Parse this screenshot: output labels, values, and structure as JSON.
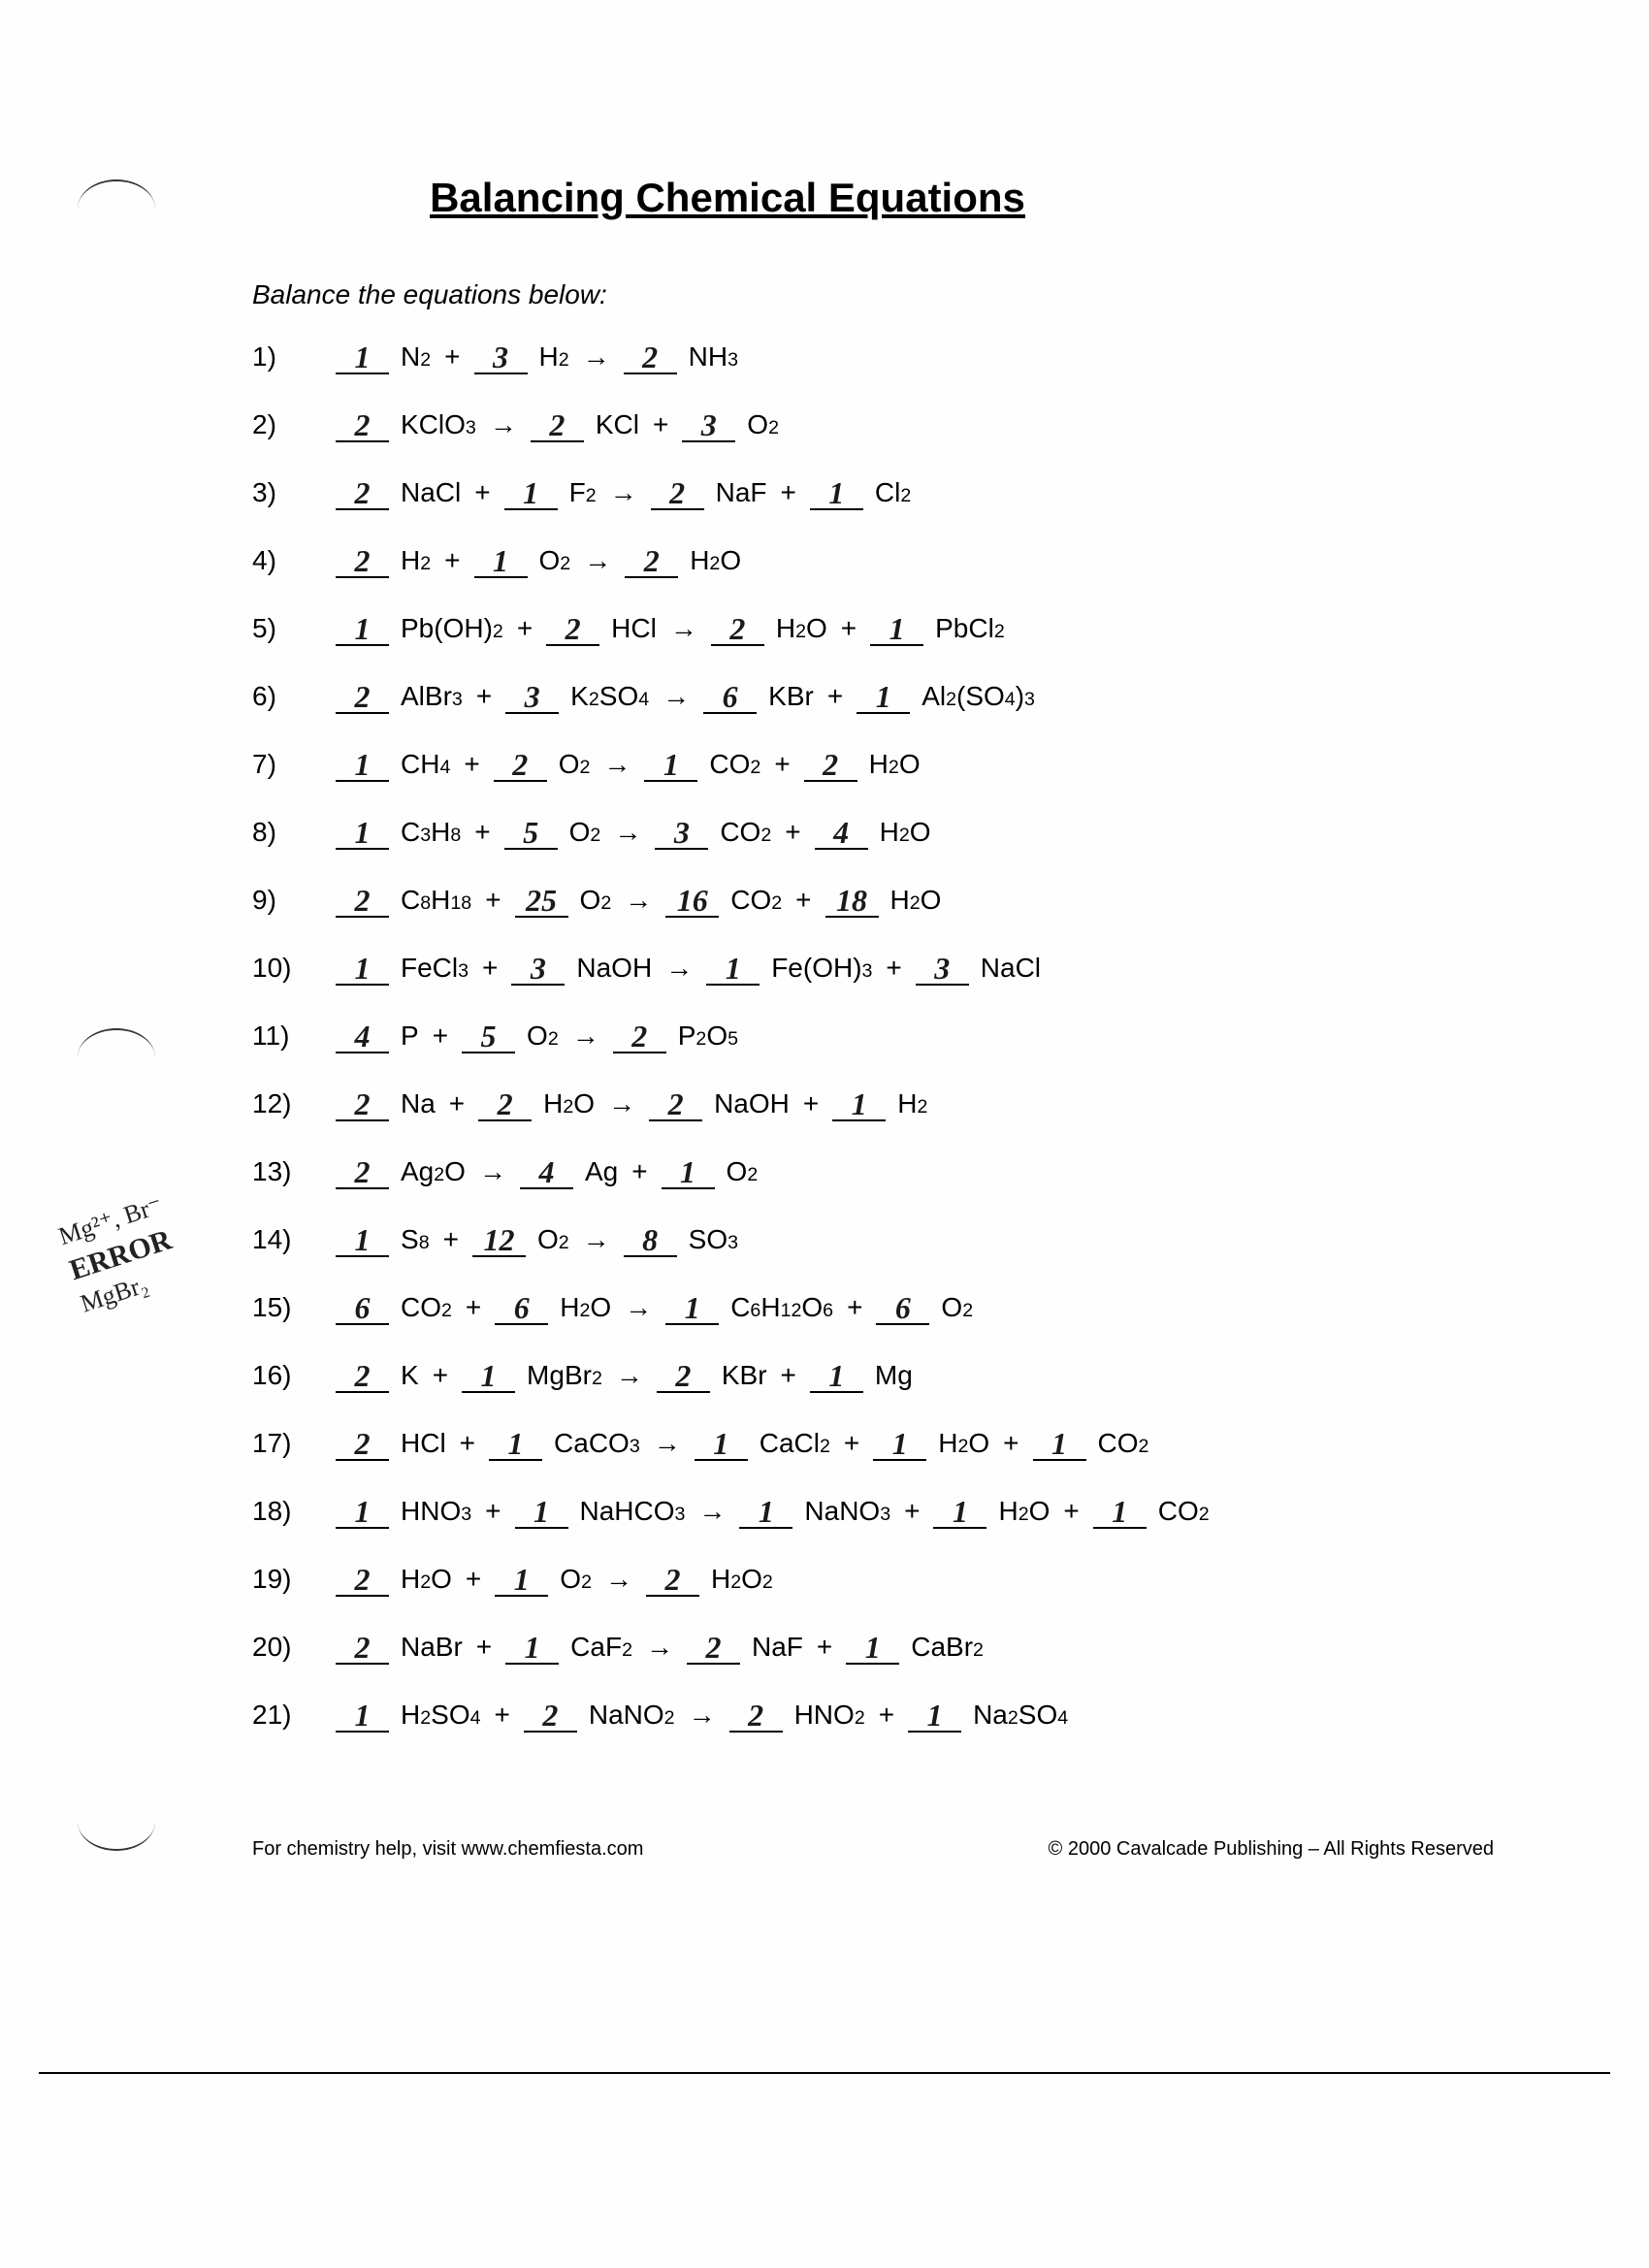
{
  "title": "Balancing Chemical Equations",
  "instruction": "Balance the equations below:",
  "margin_note": {
    "line1": "Mg²⁺, Br⁻",
    "line2": "ERROR",
    "line3": "MgBr₂"
  },
  "footer": {
    "left": "For chemistry help, visit www.chemfiesta.com",
    "right": "© 2000 Cavalcade Publishing – All Rights Reserved"
  },
  "equations": [
    {
      "n": "1)",
      "terms": [
        {
          "c": "1",
          "f": "N₂"
        },
        {
          "op": "+"
        },
        {
          "c": "3",
          "f": "H₂"
        },
        {
          "op": "→"
        },
        {
          "c": "2",
          "f": "NH₃"
        }
      ]
    },
    {
      "n": "2)",
      "terms": [
        {
          "c": "2",
          "f": "KClO₃"
        },
        {
          "op": "→"
        },
        {
          "c": "2",
          "f": "KCl"
        },
        {
          "op": "+"
        },
        {
          "c": "3",
          "f": "O₂"
        }
      ]
    },
    {
      "n": "3)",
      "terms": [
        {
          "c": "2",
          "f": "NaCl"
        },
        {
          "op": "+"
        },
        {
          "c": "1",
          "f": "F₂"
        },
        {
          "op": "→"
        },
        {
          "c": "2",
          "f": "NaF"
        },
        {
          "op": "+"
        },
        {
          "c": "1",
          "f": "Cl₂"
        }
      ]
    },
    {
      "n": "4)",
      "terms": [
        {
          "c": "2",
          "f": "H₂"
        },
        {
          "op": "+"
        },
        {
          "c": "1",
          "f": "O₂"
        },
        {
          "op": "→"
        },
        {
          "c": "2",
          "f": "H₂O"
        }
      ]
    },
    {
      "n": "5)",
      "terms": [
        {
          "c": "1",
          "f": "Pb(OH)₂"
        },
        {
          "op": "+"
        },
        {
          "c": "2",
          "f": "HCl"
        },
        {
          "op": "→"
        },
        {
          "c": "2",
          "f": "H₂O"
        },
        {
          "op": "+"
        },
        {
          "c": "1",
          "f": "PbCl₂"
        }
      ]
    },
    {
      "n": "6)",
      "terms": [
        {
          "c": "2",
          "f": "AlBr₃"
        },
        {
          "op": "+"
        },
        {
          "c": "3",
          "f": "K₂SO₄"
        },
        {
          "op": "→"
        },
        {
          "c": "6",
          "f": "KBr"
        },
        {
          "op": "+"
        },
        {
          "c": "1",
          "f": "Al₂(SO₄)₃"
        }
      ]
    },
    {
      "n": "7)",
      "terms": [
        {
          "c": "1",
          "f": "CH₄"
        },
        {
          "op": "+"
        },
        {
          "c": "2",
          "f": "O₂"
        },
        {
          "op": "→"
        },
        {
          "c": "1",
          "f": "CO₂"
        },
        {
          "op": "+"
        },
        {
          "c": "2",
          "f": "H₂O"
        }
      ]
    },
    {
      "n": "8)",
      "terms": [
        {
          "c": "1",
          "f": "C₃H₈"
        },
        {
          "op": "+"
        },
        {
          "c": "5",
          "f": "O₂"
        },
        {
          "op": "→"
        },
        {
          "c": "3",
          "f": "CO₂"
        },
        {
          "op": "+"
        },
        {
          "c": "4",
          "f": "H₂O"
        }
      ]
    },
    {
      "n": "9)",
      "terms": [
        {
          "c": "2",
          "f": "C₈H₁₈"
        },
        {
          "op": "+"
        },
        {
          "c": "25",
          "f": "O₂"
        },
        {
          "op": "→"
        },
        {
          "c": "16",
          "f": "CO₂"
        },
        {
          "op": "+"
        },
        {
          "c": "18",
          "f": "H₂O"
        }
      ]
    },
    {
      "n": "10)",
      "terms": [
        {
          "c": "1",
          "f": "FeCl₃"
        },
        {
          "op": "+"
        },
        {
          "c": "3",
          "f": "NaOH"
        },
        {
          "op": "→"
        },
        {
          "c": "1",
          "f": "Fe(OH)₃"
        },
        {
          "op": "+"
        },
        {
          "c": "3",
          "f": "NaCl"
        }
      ]
    },
    {
      "n": "11)",
      "terms": [
        {
          "c": "4",
          "f": "P"
        },
        {
          "op": "+"
        },
        {
          "c": "5",
          "f": "O₂"
        },
        {
          "op": "→"
        },
        {
          "c": "2",
          "f": "P₂O₅"
        }
      ]
    },
    {
      "n": "12)",
      "terms": [
        {
          "c": "2",
          "f": "Na"
        },
        {
          "op": "+"
        },
        {
          "c": "2",
          "f": "H₂O"
        },
        {
          "op": "→"
        },
        {
          "c": "2",
          "f": "NaOH"
        },
        {
          "op": "+"
        },
        {
          "c": "1",
          "f": "H₂"
        }
      ]
    },
    {
      "n": "13)",
      "terms": [
        {
          "c": "2",
          "f": "Ag₂O"
        },
        {
          "op": "→"
        },
        {
          "c": "4",
          "f": "Ag"
        },
        {
          "op": "+"
        },
        {
          "c": "1",
          "f": "O₂"
        }
      ]
    },
    {
      "n": "14)",
      "terms": [
        {
          "c": "1",
          "f": "S₈"
        },
        {
          "op": "+"
        },
        {
          "c": "12",
          "f": "O₂"
        },
        {
          "op": "→"
        },
        {
          "c": "8",
          "f": "SO₃"
        }
      ]
    },
    {
      "n": "15)",
      "terms": [
        {
          "c": "6",
          "f": "CO₂"
        },
        {
          "op": "+"
        },
        {
          "c": "6",
          "f": "H₂O"
        },
        {
          "op": "→"
        },
        {
          "c": "1",
          "f": "C₆H₁₂O₆"
        },
        {
          "op": "+"
        },
        {
          "c": "6",
          "f": "O₂"
        }
      ]
    },
    {
      "n": "16)",
      "terms": [
        {
          "c": "2",
          "f": "K"
        },
        {
          "op": "+"
        },
        {
          "c": "1",
          "f": "MgBr₂"
        },
        {
          "op": "→"
        },
        {
          "c": "2",
          "f": "KBr"
        },
        {
          "op": "+"
        },
        {
          "c": "1",
          "f": "Mg"
        }
      ]
    },
    {
      "n": "17)",
      "terms": [
        {
          "c": "2",
          "f": "HCl"
        },
        {
          "op": "+"
        },
        {
          "c": "1",
          "f": "CaCO₃"
        },
        {
          "op": "→"
        },
        {
          "c": "1",
          "f": "CaCl₂"
        },
        {
          "op": "+"
        },
        {
          "c": "1",
          "f": "H₂O"
        },
        {
          "op": "+"
        },
        {
          "c": "1",
          "f": "CO₂"
        }
      ]
    },
    {
      "n": "18)",
      "terms": [
        {
          "c": "1",
          "f": "HNO₃"
        },
        {
          "op": "+"
        },
        {
          "c": "1",
          "f": "NaHCO₃"
        },
        {
          "op": "→"
        },
        {
          "c": "1",
          "f": "NaNO₃"
        },
        {
          "op": "+"
        },
        {
          "c": "1",
          "f": "H₂O"
        },
        {
          "op": "+"
        },
        {
          "c": "1",
          "f": "CO₂"
        }
      ]
    },
    {
      "n": "19)",
      "terms": [
        {
          "c": "2",
          "f": "H₂O"
        },
        {
          "op": "+"
        },
        {
          "c": "1",
          "f": "O₂"
        },
        {
          "op": "→"
        },
        {
          "c": "2",
          "f": "H₂O₂"
        }
      ]
    },
    {
      "n": "20)",
      "terms": [
        {
          "c": "2",
          "f": "NaBr"
        },
        {
          "op": "+"
        },
        {
          "c": "1",
          "f": "CaF₂"
        },
        {
          "op": "→"
        },
        {
          "c": "2",
          "f": "NaF"
        },
        {
          "op": "+"
        },
        {
          "c": "1",
          "f": "CaBr₂"
        }
      ]
    },
    {
      "n": "21)",
      "terms": [
        {
          "c": "1",
          "f": "H₂SO₄"
        },
        {
          "op": "+"
        },
        {
          "c": "2",
          "f": "NaNO₂"
        },
        {
          "op": "→"
        },
        {
          "c": "2",
          "f": "HNO₂"
        },
        {
          "op": "+"
        },
        {
          "c": "1",
          "f": "Na₂SO₄"
        }
      ]
    }
  ]
}
